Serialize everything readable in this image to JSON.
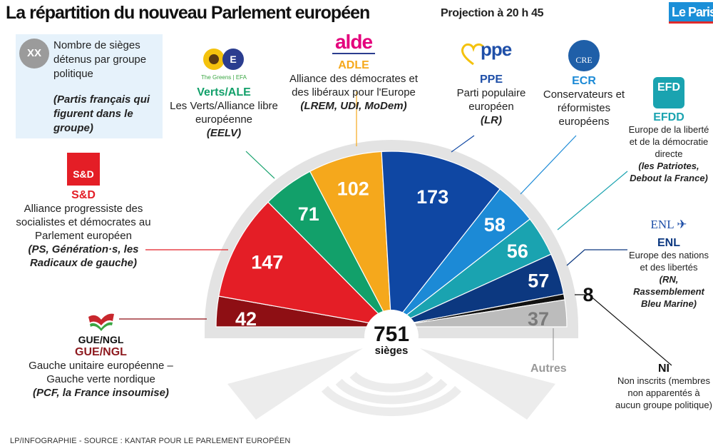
{
  "header": {
    "title": "La répartition du nouveau Parlement européen",
    "subtitle": "Projection à 20 h 45",
    "logo_text": "Le Paris"
  },
  "legend": {
    "badge": "XX",
    "text": "Nombre de sièges détenus par groupe politique",
    "italic": "(Partis français qui figurent dans le groupe)"
  },
  "groups": {
    "gue": {
      "acronym": "GUE/NGL",
      "logo_text": "GUE/NGL",
      "full": "Gauche unitaire européenne – Gauche verte nordique",
      "parties": "(PCF, la France insoumise)"
    },
    "sd": {
      "acronym": "S&D",
      "logo_text": "S&D",
      "full": "Alliance progressiste des socialistes et démocrates au Parlement européen",
      "parties": "(PS, Génération·s, les Radicaux de gauche)"
    },
    "verts": {
      "acronym": "Verts/ALE",
      "logo_text": "The Greens | EFA",
      "full": "Les Verts/Alliance libre européenne",
      "parties": "(EELV)"
    },
    "adle": {
      "acronym": "ADLE",
      "logo_text": "alde",
      "full": "Alliance des démocrates et des libéraux pour l'Europe",
      "parties": "(LREM, UDI, MoDem)"
    },
    "ppe": {
      "acronym": "PPE",
      "logo_text": "ppe",
      "full": "Parti populaire européen",
      "parties": "(LR)"
    },
    "ecr": {
      "acronym": "ECR",
      "logo_text": "CRE",
      "full": "Conservateurs et réformistes européens",
      "parties": ""
    },
    "efdd": {
      "acronym": "EFDD",
      "logo_text": "EFD",
      "full": "Europe de la liberté et de la démocratie directe",
      "parties": "(les Patriotes, Debout la France)"
    },
    "enl": {
      "acronym": "ENL",
      "logo_text": "ENL",
      "full": "Europe des nations et des libertés",
      "parties": "(RN, Rassemblement Bleu Marine)"
    },
    "ni": {
      "acronym": "NI",
      "full": "Non inscrits (membres non apparentés à aucun groupe politique)",
      "parties": ""
    },
    "autres": {
      "acronym": "Autres"
    }
  },
  "footer": "LP/INFOGRAPHIE - SOURCE : KANTAR POUR LE PARLEMENT EUROPÉEN",
  "chart_data": {
    "type": "pie",
    "variant": "hemicycle",
    "title": "La répartition du nouveau Parlement européen",
    "subtitle": "Projection à 20 h 45",
    "total": 751,
    "total_label": "751",
    "total_unit": "sièges",
    "order": "left-to-right",
    "categories": [
      "GUE/NGL",
      "S&D",
      "Verts/ALE",
      "ADLE",
      "PPE",
      "ECR",
      "EFDD",
      "ENL",
      "NI",
      "Autres"
    ],
    "values": [
      42,
      147,
      71,
      102,
      173,
      58,
      56,
      57,
      8,
      37
    ],
    "colors": [
      "#8e0f14",
      "#e41e26",
      "#12a06a",
      "#f5a81c",
      "#0f47a3",
      "#1c8ad6",
      "#1aa3b0",
      "#0c3880",
      "#111111",
      "#bcbcbc"
    ],
    "label_colors": [
      "#ffffff",
      "#ffffff",
      "#ffffff",
      "#ffffff",
      "#ffffff",
      "#ffffff",
      "#ffffff",
      "#ffffff",
      "#111111",
      "#7a7a7a"
    ]
  }
}
